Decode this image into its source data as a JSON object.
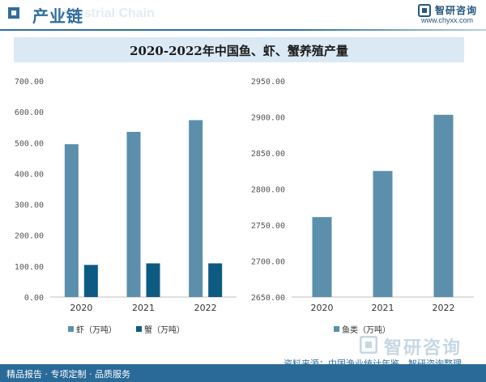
{
  "header": {
    "title": "产业链",
    "watermark": "Industrial Chain"
  },
  "brand": {
    "name": "智研咨询",
    "url": "www.chyxx.com"
  },
  "footer": {
    "left_text": "精品报告 · 专项定制 · 品质服务",
    "source_text": "资料来源：中国渔业统计年鉴、智研咨询整理",
    "brand_name": "智研咨询"
  },
  "colors": {
    "shrimp": "#5b8fac",
    "crab": "#0d5a82",
    "fish": "#5b8fac",
    "axis_text": "#555555",
    "accent": "#2f6d9c"
  },
  "chart_data": [
    {
      "type": "bar",
      "title": "2020-2022年中国鱼、虾、蟹养殖产量",
      "categories": [
        "2020",
        "2021",
        "2022"
      ],
      "series": [
        {
          "name": "虾（万吨）",
          "values": [
            495,
            535,
            573
          ]
        },
        {
          "name": "蟹（万吨）",
          "values": [
            104,
            109,
            109
          ]
        }
      ],
      "ylim": [
        0,
        700
      ],
      "yticks": [
        "0.00",
        "100.00",
        "200.00",
        "300.00",
        "400.00",
        "500.00",
        "600.00",
        "700.00"
      ],
      "legend": "bottom",
      "grid": false
    },
    {
      "type": "bar",
      "categories": [
        "2020",
        "2021",
        "2022"
      ],
      "series": [
        {
          "name": "鱼类（万吨）",
          "values": [
            2761,
            2825,
            2903
          ]
        }
      ],
      "ylim": [
        2650,
        2950
      ],
      "yticks": [
        "2650.00",
        "2700.00",
        "2750.00",
        "2800.00",
        "2850.00",
        "2900.00",
        "2950.00"
      ],
      "legend": "bottom",
      "grid": false
    }
  ]
}
